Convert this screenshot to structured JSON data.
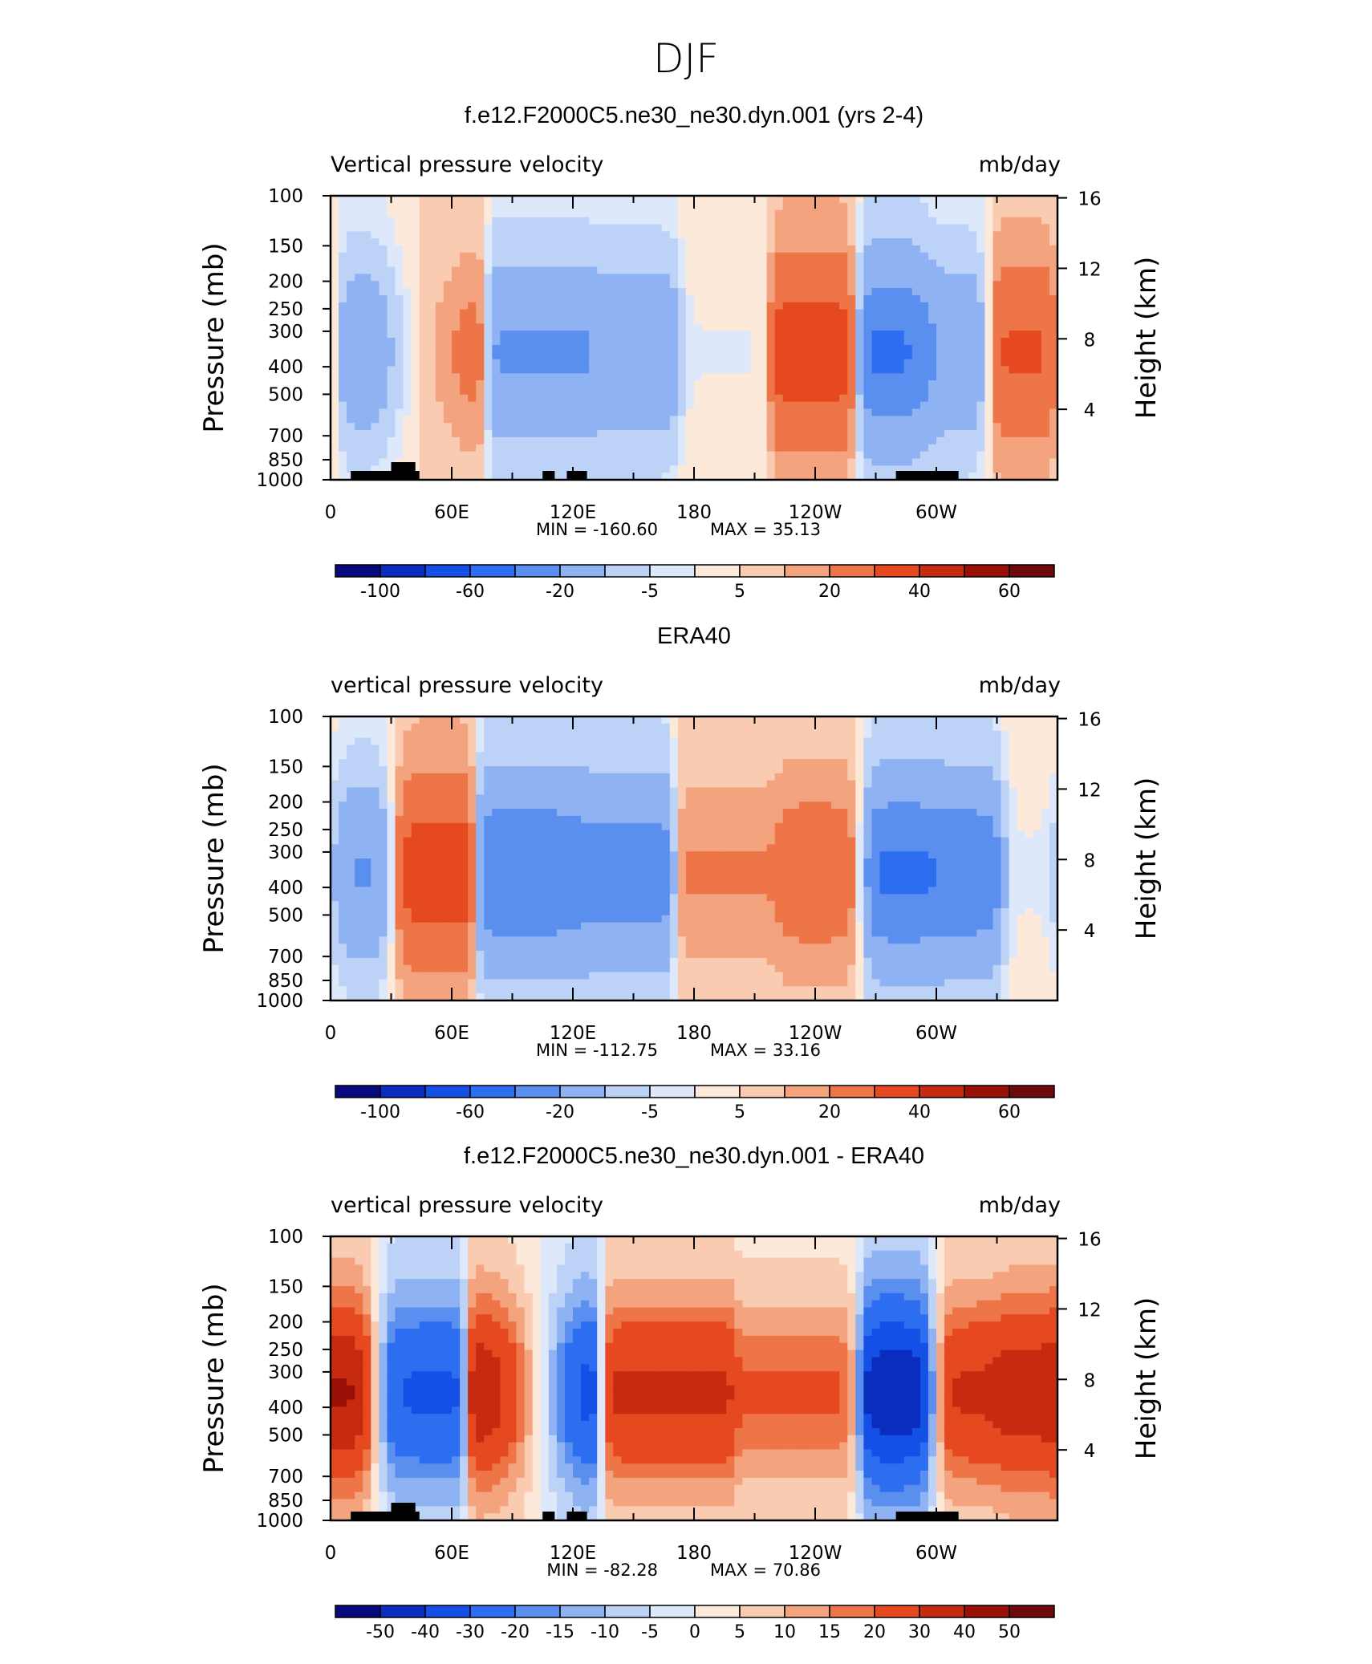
{
  "main_title": "DJF",
  "colors": {
    "palette": [
      "#08087f",
      "#0a2dbf",
      "#1450e6",
      "#2d6ef0",
      "#5a8eef",
      "#8fb2f3",
      "#bcd3f7",
      "#dde9fb",
      "#fde9da",
      "#f9cbb0",
      "#f4a37f",
      "#ee7548",
      "#e6481f",
      "#c62a0f",
      "#9a1006",
      "#6e0a0a"
    ],
    "frame": "#000000",
    "topography": "#000000"
  },
  "chart_data": [
    {
      "type": "heatmap",
      "title": "f.e12.F2000C5.ne30_ne30.dyn.001 (yrs 2-4)",
      "variable_label": "Vertical pressure velocity",
      "units_label": "mb/day",
      "ylabel": "Pressure (mb)",
      "y2label": "Height (km)",
      "xticks": [
        "0",
        "60E",
        "120E",
        "180",
        "120W",
        "60W"
      ],
      "yticks": [
        "100",
        "150",
        "200",
        "250",
        "300",
        "400",
        "500",
        "700",
        "850",
        "1000"
      ],
      "y2ticks": [
        "16",
        "12",
        "8",
        "4"
      ],
      "min_label": "MIN = -160.60",
      "max_label": "MAX =  35.13",
      "min": -160.6,
      "max": 35.13,
      "colorbar_labels": [
        "-100",
        "-60",
        "-20",
        "-5",
        "5",
        "20",
        "40",
        "60"
      ],
      "field_longitude_profile": [
        {
          "lon": 20,
          "value": -35
        },
        {
          "lon": 38,
          "value": -20
        },
        {
          "lon": 45,
          "value": 15
        },
        {
          "lon": 110,
          "value": -40
        },
        {
          "lon": 150,
          "value": -35
        },
        {
          "lon": 195,
          "value": -5
        },
        {
          "lon": 240,
          "value": 25
        },
        {
          "lon": 283,
          "value": -60
        },
        {
          "lon": 305,
          "value": -35
        },
        {
          "lon": 345,
          "value": 20
        }
      ]
    },
    {
      "type": "heatmap",
      "title": "ERA40",
      "variable_label": "vertical pressure velocity",
      "units_label": "mb/day",
      "ylabel": "Pressure (mb)",
      "y2label": "Height (km)",
      "xticks": [
        "0",
        "60E",
        "120E",
        "180",
        "120W",
        "60W"
      ],
      "yticks": [
        "100",
        "150",
        "200",
        "250",
        "300",
        "400",
        "500",
        "700",
        "850",
        "1000"
      ],
      "y2ticks": [
        "16",
        "12",
        "8",
        "4"
      ],
      "min_label": "MIN = -112.75",
      "max_label": "MAX =  33.16",
      "min": -112.75,
      "max": 33.16,
      "colorbar_labels": [
        "-100",
        "-60",
        "-20",
        "-5",
        "5",
        "20",
        "40",
        "60"
      ],
      "field_longitude_profile": [
        {
          "lon": 15,
          "value": -40
        },
        {
          "lon": 45,
          "value": 25
        },
        {
          "lon": 100,
          "value": -55
        },
        {
          "lon": 140,
          "value": -50
        },
        {
          "lon": 200,
          "value": 10
        },
        {
          "lon": 245,
          "value": 15
        },
        {
          "lon": 283,
          "value": -60
        },
        {
          "lon": 315,
          "value": -55
        },
        {
          "lon": 350,
          "value": -5
        }
      ]
    },
    {
      "type": "heatmap",
      "title": "f.e12.F2000C5.ne30_ne30.dyn.001 - ERA40",
      "variable_label": "vertical pressure velocity",
      "units_label": "mb/day",
      "ylabel": "Pressure (mb)",
      "y2label": "Height (km)",
      "xticks": [
        "0",
        "60E",
        "120E",
        "180",
        "120W",
        "60W"
      ],
      "yticks": [
        "100",
        "150",
        "200",
        "250",
        "300",
        "400",
        "500",
        "700",
        "850",
        "1000"
      ],
      "y2ticks": [
        "16",
        "12",
        "8",
        "4"
      ],
      "min_label": "MIN = -82.28",
      "max_label": "MAX =  70.86",
      "min": -82.28,
      "max": 70.86,
      "colorbar_labels": [
        "-50",
        "-40",
        "-30",
        "-20",
        "-15",
        "-10",
        "-5",
        "0",
        "5",
        "10",
        "15",
        "20",
        "30",
        "40",
        "50"
      ],
      "field_longitude_profile": [
        {
          "lon": 10,
          "value": 40
        },
        {
          "lon": 35,
          "value": -30
        },
        {
          "lon": 100,
          "value": 40
        },
        {
          "lon": 108,
          "value": -40
        },
        {
          "lon": 160,
          "value": 30
        },
        {
          "lon": 240,
          "value": 20
        },
        {
          "lon": 283,
          "value": -45
        },
        {
          "lon": 315,
          "value": 30
        },
        {
          "lon": 345,
          "value": 35
        }
      ]
    }
  ]
}
